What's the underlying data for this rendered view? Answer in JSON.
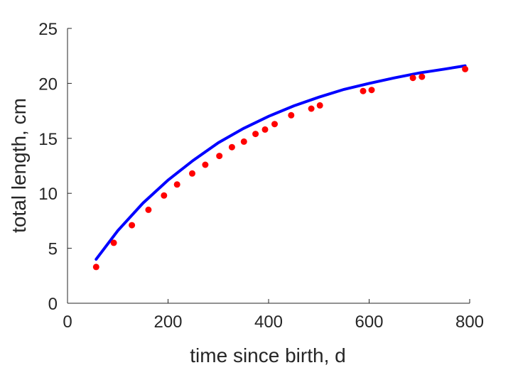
{
  "chart_data": {
    "type": "scatter",
    "title": "",
    "xlabel": "time since birth, d",
    "ylabel": "total length, cm",
    "xlim": [
      0,
      800
    ],
    "ylim": [
      0,
      25
    ],
    "xticks": [
      "0",
      "200",
      "400",
      "600",
      "800"
    ],
    "yticks": [
      "0",
      "5",
      "10",
      "15",
      "20",
      "25"
    ],
    "grid": false,
    "series": [
      {
        "type": "scatter",
        "color": "#ff0000",
        "x": [
          57,
          92,
          128,
          161,
          192,
          218,
          248,
          274,
          302,
          327,
          351,
          374,
          393,
          412,
          445,
          485,
          502,
          588,
          605,
          687,
          705,
          791
        ],
        "y": [
          3.3,
          5.5,
          7.1,
          8.5,
          9.8,
          10.8,
          11.8,
          12.6,
          13.4,
          14.2,
          14.7,
          15.4,
          15.8,
          16.3,
          17.1,
          17.7,
          18.0,
          19.3,
          19.4,
          20.5,
          20.6,
          21.3
        ]
      },
      {
        "type": "line",
        "color": "#0000ff",
        "x": [
          57,
          100,
          150,
          200,
          250,
          300,
          350,
          400,
          450,
          500,
          550,
          600,
          650,
          700,
          750,
          791
        ],
        "y": [
          4.0,
          6.6,
          9.1,
          11.2,
          13.0,
          14.6,
          15.9,
          17.0,
          17.95,
          18.75,
          19.45,
          20.0,
          20.5,
          20.95,
          21.3,
          21.6
        ]
      }
    ]
  }
}
